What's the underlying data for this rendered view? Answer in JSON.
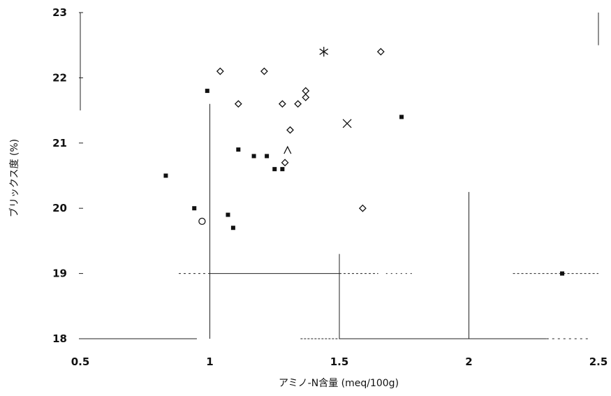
{
  "chart_data": {
    "type": "scatter",
    "title": "",
    "xlabel": "アミノ-N含量 (meq/100g)",
    "ylabel": "ブリックス度 (%)",
    "xlim": [
      0.5,
      2.5
    ],
    "ylim": [
      18,
      23
    ],
    "x_ticks": [
      "0.5",
      "1",
      "1.5",
      "2",
      "2.5"
    ],
    "y_ticks": [
      "18",
      "19",
      "20",
      "21",
      "22",
      "23"
    ],
    "grid": false,
    "legend": "none",
    "series": [
      {
        "marker": "filled-square",
        "points": [
          [
            0.83,
            20.5
          ],
          [
            0.94,
            20.0
          ],
          [
            0.99,
            21.8
          ],
          [
            1.07,
            19.9
          ],
          [
            1.09,
            19.7
          ],
          [
            1.11,
            20.9
          ],
          [
            1.17,
            20.8
          ],
          [
            1.22,
            20.8
          ],
          [
            1.25,
            20.6
          ],
          [
            1.28,
            20.6
          ],
          [
            1.74,
            21.4
          ],
          [
            2.36,
            19.0
          ]
        ]
      },
      {
        "marker": "open-diamond",
        "points": [
          [
            1.04,
            22.1
          ],
          [
            1.21,
            22.1
          ],
          [
            1.11,
            21.6
          ],
          [
            1.28,
            21.6
          ],
          [
            1.34,
            21.6
          ],
          [
            1.37,
            21.7
          ],
          [
            1.37,
            21.8
          ],
          [
            1.31,
            21.2
          ],
          [
            1.29,
            20.7
          ],
          [
            1.66,
            22.4
          ],
          [
            1.59,
            20.0
          ]
        ]
      },
      {
        "marker": "open-circle",
        "points": [
          [
            0.97,
            19.8
          ]
        ]
      },
      {
        "marker": "caret",
        "points": [
          [
            1.3,
            20.9
          ]
        ]
      },
      {
        "marker": "asterisk",
        "points": [
          [
            1.44,
            22.4
          ]
        ]
      },
      {
        "marker": "cross",
        "points": [
          [
            1.53,
            21.3
          ]
        ]
      }
    ]
  }
}
